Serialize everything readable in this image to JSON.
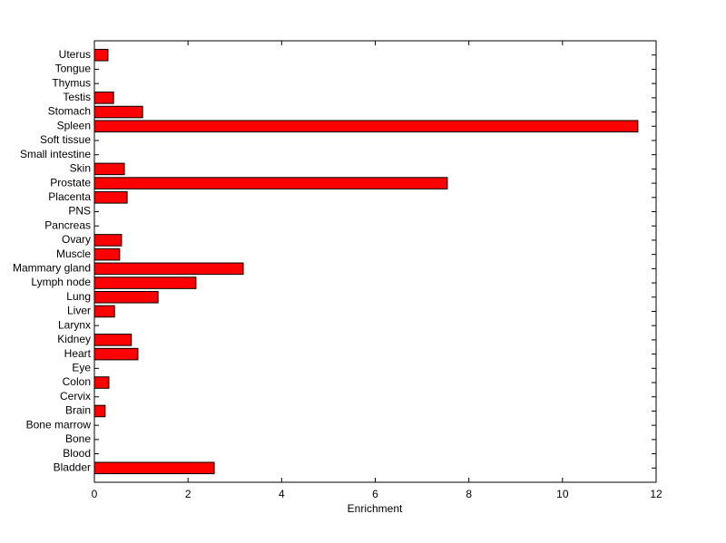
{
  "chart_data": {
    "type": "barh",
    "xlabel": "Enrichment",
    "categories": [
      "Bladder",
      "Blood",
      "Bone",
      "Bone marrow",
      "Brain",
      "Cervix",
      "Colon",
      "Eye",
      "Heart",
      "Kidney",
      "Larynx",
      "Liver",
      "Lung",
      "Lymph node",
      "Mammary gland",
      "Muscle",
      "Ovary",
      "Pancreas",
      "PNS",
      "Placenta",
      "Prostate",
      "Skin",
      "Small intestine",
      "Soft tissue",
      "Spleen",
      "Stomach",
      "Testis",
      "Thymus",
      "Tongue",
      "Uterus"
    ],
    "values": [
      2.56,
      0,
      0,
      0,
      0.23,
      0,
      0.31,
      0,
      0.93,
      0.79,
      0,
      0.43,
      1.36,
      2.17,
      3.18,
      0.54,
      0.58,
      0,
      0,
      0.7,
      7.54,
      0.64,
      0,
      0,
      11.61,
      1.03,
      0.41,
      0,
      0,
      0.29
    ],
    "color": "#ff0000",
    "xlim": [
      0,
      12
    ],
    "xticks": [
      0,
      2,
      4,
      6,
      8,
      10,
      12
    ]
  }
}
